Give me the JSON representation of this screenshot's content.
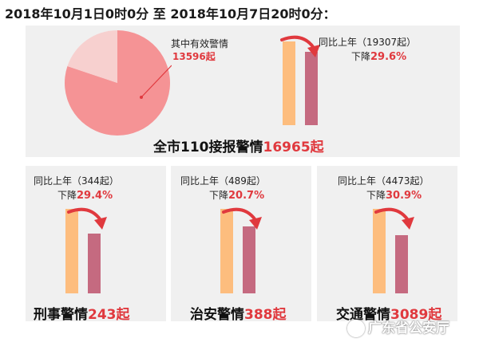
{
  "heading": "2018年10月1日0时0分 至 2018年10月7日20时0分：",
  "total": {
    "label": "全市110接报警情",
    "value": "16965起",
    "effective_label": "其中有效警情",
    "effective_value": "13596起",
    "yoy_text": "同比上年（19307起）",
    "change_label": "下降",
    "change_value": "29.6%"
  },
  "categories": [
    {
      "label": "刑事警情",
      "value": "243起",
      "yoy_text": "同比上年（344起）",
      "change_label": "下降",
      "change_value": "29.4%"
    },
    {
      "label": "治安警情",
      "value": "388起",
      "yoy_text": "同比上年（489起）",
      "change_label": "下降",
      "change_value": "20.7%"
    },
    {
      "label": "交通警情",
      "value": "3089起",
      "yoy_text": "同比上年（4473起）",
      "change_label": "下降",
      "change_value": "30.9%"
    }
  ],
  "watermark": "广东省公安厅",
  "colors": {
    "pie_effective": "#f59395",
    "pie_other": "#f7d0cf",
    "bar_previous_year": "#fdbd7e",
    "bar_current_year": "#c56a80",
    "accent_red": "#e0393e",
    "panel_bg": "#f0f0f0"
  },
  "chart_data": [
    {
      "type": "pie",
      "categories": [
        "其中有效警情",
        ""
      ],
      "values": [
        13596,
        3369
      ]
    },
    {
      "type": "bar",
      "categories": [
        "同比上年",
        "全市110接报警情"
      ],
      "values": [
        19307,
        16965
      ]
    },
    {
      "type": "bar",
      "categories": [
        "同比上年",
        "刑事警情"
      ],
      "values": [
        344,
        243
      ]
    },
    {
      "type": "bar",
      "categories": [
        "同比上年",
        "治安警情"
      ],
      "values": [
        489,
        388
      ]
    },
    {
      "type": "bar",
      "categories": [
        "同比上年",
        "交通警情"
      ],
      "values": [
        4473,
        3089
      ]
    }
  ]
}
